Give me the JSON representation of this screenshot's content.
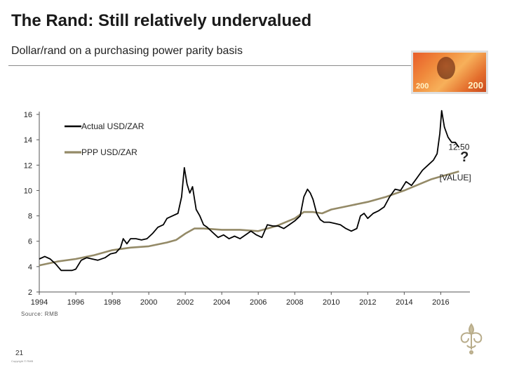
{
  "title": "The Rand: Still relatively undervalued",
  "subtitle": "Dollar/rand on a purchasing power parity basis",
  "source": "Source: RMB",
  "page_number": "21",
  "copyright": "Copyright © RMB",
  "banknote": {
    "denomination": "200"
  },
  "colors": {
    "actual": "#000000",
    "ppp": "#948a67",
    "rule": "#8a8a8a"
  },
  "chart_data": {
    "type": "line",
    "title": "",
    "xlabel": "",
    "ylabel": "",
    "xlim": [
      1994,
      2017.6
    ],
    "ylim": [
      2,
      16
    ],
    "xticks": [
      "1994",
      "1996",
      "1998",
      "2000",
      "2002",
      "2004",
      "2006",
      "2008",
      "2010",
      "2012",
      "2014",
      "2016"
    ],
    "yticks": [
      "2",
      "4",
      "6",
      "8",
      "10",
      "12",
      "14",
      "16"
    ],
    "grid": false,
    "legend_position": "top-left",
    "annotations": [
      {
        "text": "12.50",
        "x": 2017.0,
        "y": 13.2
      },
      {
        "text": "?",
        "x": 2017.3,
        "y": 12.3
      },
      {
        "text": "[VALUE]",
        "x": 2016.8,
        "y": 10.8
      }
    ],
    "series": [
      {
        "name": "Actual USD/ZAR",
        "x": [
          1994.0,
          1994.3,
          1994.6,
          1994.9,
          1995.2,
          1995.5,
          1995.8,
          1996.0,
          1996.3,
          1996.6,
          1996.9,
          1997.2,
          1997.6,
          1997.9,
          1998.2,
          1998.45,
          1998.6,
          1998.8,
          1999.0,
          1999.3,
          1999.6,
          1999.9,
          2000.2,
          2000.5,
          2000.8,
          2001.0,
          2001.3,
          2001.6,
          2001.8,
          2001.95,
          2002.1,
          2002.25,
          2002.4,
          2002.6,
          2002.8,
          2003.0,
          2003.2,
          2003.5,
          2003.8,
          2004.1,
          2004.4,
          2004.7,
          2005.0,
          2005.3,
          2005.6,
          2005.9,
          2006.2,
          2006.5,
          2006.8,
          2007.1,
          2007.4,
          2007.7,
          2008.0,
          2008.3,
          2008.5,
          2008.7,
          2008.85,
          2009.0,
          2009.2,
          2009.4,
          2009.6,
          2009.9,
          2010.2,
          2010.5,
          2010.8,
          2011.1,
          2011.4,
          2011.6,
          2011.8,
          2012.0,
          2012.3,
          2012.6,
          2012.9,
          2013.2,
          2013.5,
          2013.8,
          2014.1,
          2014.4,
          2014.7,
          2015.0,
          2015.3,
          2015.6,
          2015.8,
          2015.95,
          2016.05,
          2016.2,
          2016.4,
          2016.6,
          2016.8,
          2017.0
        ],
        "y": [
          4.6,
          4.8,
          4.6,
          4.2,
          3.7,
          3.7,
          3.7,
          3.8,
          4.5,
          4.7,
          4.6,
          4.5,
          4.7,
          5.0,
          5.1,
          5.5,
          6.2,
          5.8,
          6.2,
          6.2,
          6.1,
          6.2,
          6.6,
          7.1,
          7.3,
          7.8,
          8.0,
          8.2,
          9.5,
          11.8,
          10.5,
          9.8,
          10.3,
          8.5,
          8.0,
          7.3,
          7.1,
          6.7,
          6.3,
          6.5,
          6.2,
          6.4,
          6.2,
          6.5,
          6.8,
          6.5,
          6.3,
          7.3,
          7.2,
          7.2,
          7.0,
          7.3,
          7.6,
          8.0,
          9.5,
          10.1,
          9.8,
          9.3,
          8.2,
          7.7,
          7.5,
          7.5,
          7.4,
          7.3,
          7.0,
          6.8,
          7.0,
          8.0,
          8.2,
          7.8,
          8.2,
          8.4,
          8.7,
          9.5,
          10.1,
          10.0,
          10.7,
          10.4,
          11.0,
          11.6,
          12.0,
          12.4,
          12.9,
          14.5,
          16.3,
          15.0,
          14.2,
          13.8,
          13.8,
          13.4
        ]
      },
      {
        "name": "PPP USD/ZAR",
        "x": [
          1994.0,
          1995.0,
          1996.0,
          1997.0,
          1998.0,
          1999.0,
          2000.0,
          2001.0,
          2001.5,
          2002.0,
          2002.5,
          2003.0,
          2004.0,
          2005.0,
          2006.0,
          2007.0,
          2007.5,
          2008.0,
          2008.5,
          2009.0,
          2009.5,
          2010.0,
          2011.0,
          2012.0,
          2013.0,
          2014.0,
          2015.0,
          2015.5,
          2016.0,
          2016.5,
          2017.0
        ],
        "y": [
          4.1,
          4.4,
          4.6,
          4.9,
          5.3,
          5.5,
          5.6,
          5.9,
          6.1,
          6.6,
          7.0,
          7.0,
          6.9,
          6.9,
          6.8,
          7.2,
          7.5,
          7.8,
          8.3,
          8.3,
          8.2,
          8.5,
          8.8,
          9.1,
          9.5,
          10.0,
          10.6,
          10.9,
          11.1,
          11.3,
          11.5
        ]
      }
    ]
  }
}
